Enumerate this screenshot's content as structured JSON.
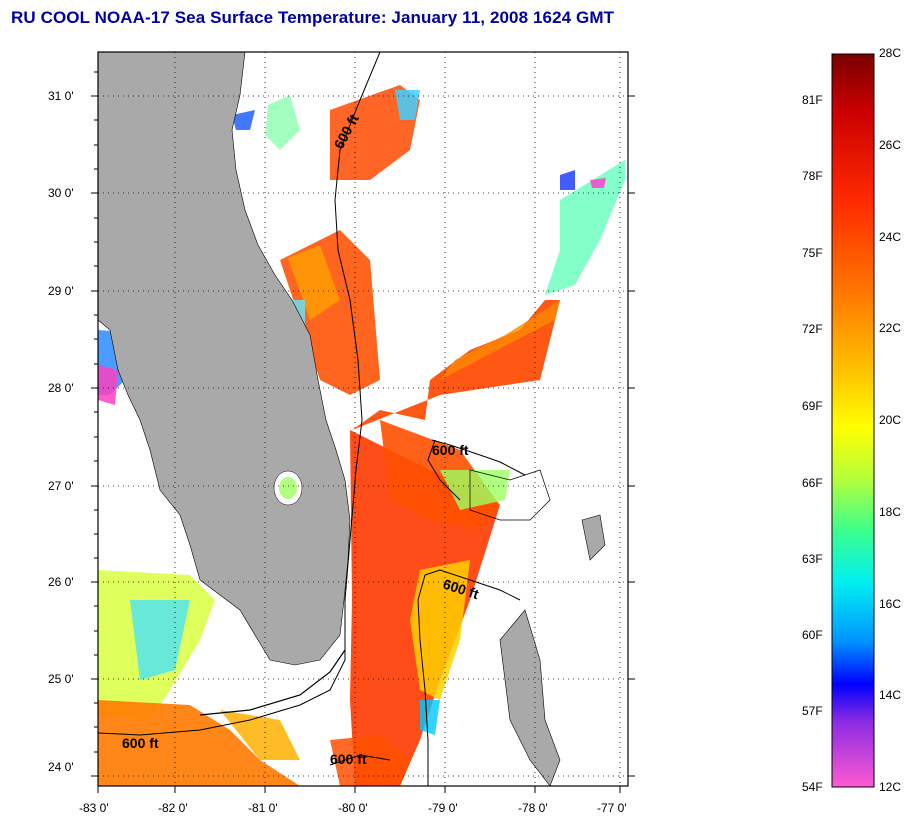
{
  "title": "RU COOL  NOAA-17  Sea Surface Temperature:  January 11, 2008 1624 GMT",
  "map": {
    "lon_ticks": [
      "-83 0'",
      "-82 0'",
      "-81 0'",
      "-80 0'",
      "-79 0'",
      "-78 0'",
      "-77 0'"
    ],
    "lat_ticks": [
      "31 0'",
      "30 0'",
      "29 0'",
      "28 0'",
      "27 0'",
      "26 0'",
      "25 0'",
      "24 0'"
    ],
    "lon_range": [
      -83,
      -76.7
    ],
    "lat_range": [
      23.8,
      31.45
    ],
    "contour_labels": [
      "600 ft",
      "600 ft",
      "600 ft",
      "600 ft",
      "600 ft"
    ],
    "land_color": "#a9a9a9"
  },
  "colorbar": {
    "celsius_labels": [
      "28C",
      "26C",
      "24C",
      "22C",
      "20C",
      "18C",
      "16C",
      "14C",
      "12C"
    ],
    "fahrenheit_labels": [
      "81F",
      "78F",
      "75F",
      "72F",
      "69F",
      "66F",
      "63F",
      "60F",
      "57F",
      "54F"
    ],
    "range_c": [
      12,
      28
    ],
    "stops": [
      "#7a0000",
      "#cc0000",
      "#ff2a00",
      "#ff7a00",
      "#ffc800",
      "#ffff00",
      "#b4ff3c",
      "#3cff8c",
      "#00f0f0",
      "#0096ff",
      "#0000ff",
      "#8a2be2",
      "#ff5ad2"
    ]
  }
}
